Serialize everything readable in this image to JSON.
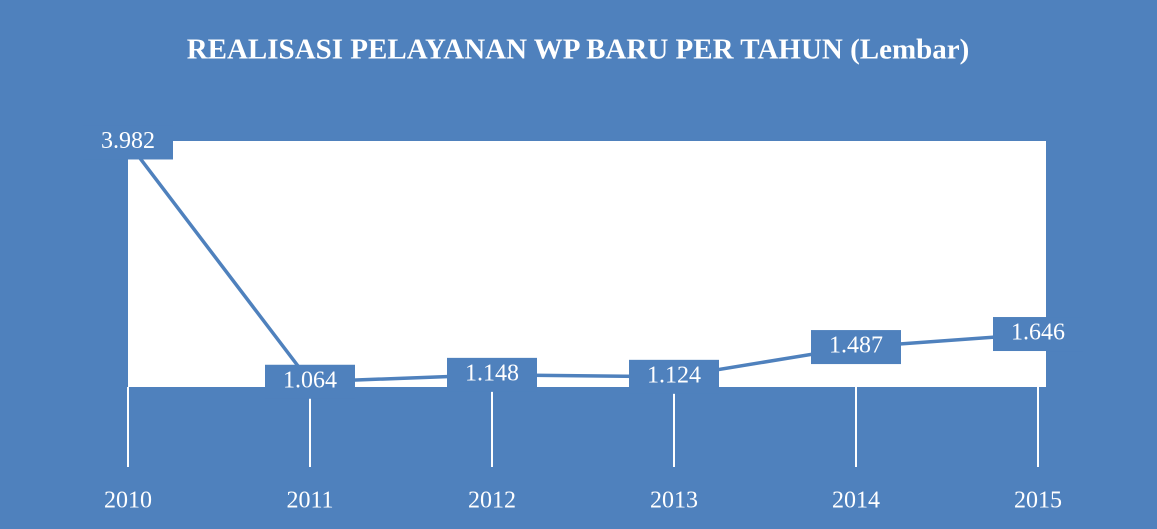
{
  "chart_data": {
    "type": "line",
    "title": "REALISASI PELAYANAN WP BARU PER TAHUN (Lembar)",
    "categories": [
      "2010",
      "2011",
      "2012",
      "2013",
      "2014",
      "2015"
    ],
    "series": [
      {
        "name": "Lembar",
        "color": "#4f81bd",
        "values": [
          3982,
          1064,
          1148,
          1124,
          1487,
          1646
        ],
        "value_labels": [
          "3.982",
          "1.064",
          "1.148",
          "1.124",
          "1.487",
          "1.646"
        ]
      }
    ],
    "ylim": [
      1000,
      4000
    ]
  }
}
